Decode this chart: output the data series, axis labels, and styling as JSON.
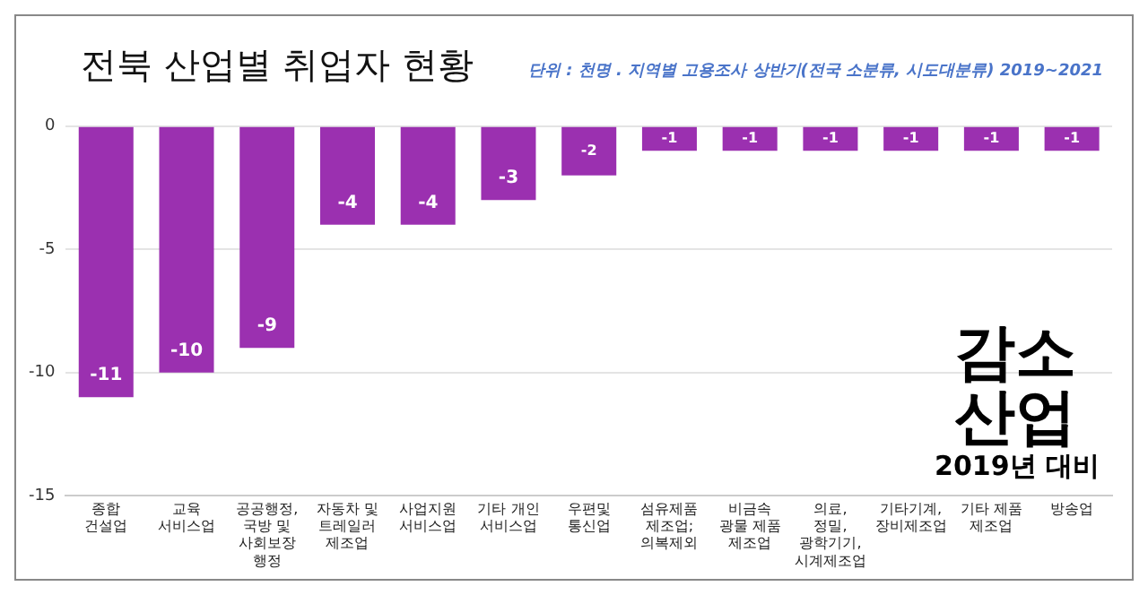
{
  "chart_data": {
    "type": "bar",
    "title": "전북 산업별 취업자 현황",
    "subtitle": "단위 : 천명 . 지역별 고용조사 상반기(전국 소분류, 시도대분류) 2019~2021",
    "categories": [
      "종합 건설업",
      "교육 서비스업",
      "공공행정, 국방 및 사회보장 행정",
      "자동차 및 트레일러 제조업",
      "사업지원 서비스업",
      "기타 개인 서비스업",
      "우편및 통신업",
      "섬유제품 제조업; 의복제외",
      "비금속 광물 제품 제조업",
      "의료,정밀,광학기기,시계제조업",
      "기타기계, 장비제조업",
      "기타 제품 제조업",
      "방송업"
    ],
    "values": [
      -11,
      -10,
      -9,
      -4,
      -4,
      -3,
      -2,
      -1,
      -1,
      -1,
      -1,
      -1,
      -1
    ],
    "color": "#9b30b0",
    "ylim": [
      -15,
      0
    ],
    "yticks": [
      -15,
      -10,
      -5,
      0
    ],
    "grid": "y",
    "data_labels": true,
    "legend": false,
    "annotations": [
      "감소 산업",
      "2019년 대비"
    ]
  }
}
